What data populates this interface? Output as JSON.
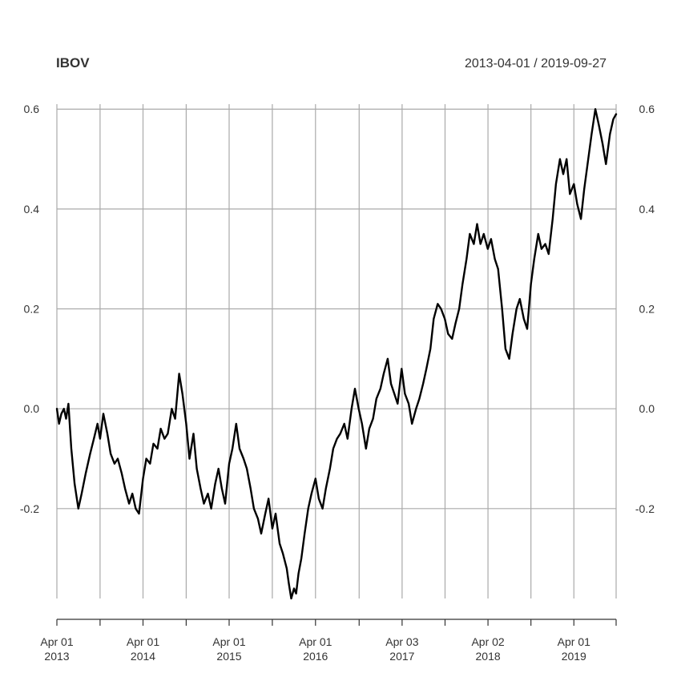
{
  "chart_data": {
    "type": "line",
    "title": "IBOV",
    "date_range": "2013-04-01 / 2019-09-27",
    "xlabel": "",
    "ylabel": "",
    "x_range": [
      "2013-04-01",
      "2019-09-27"
    ],
    "ylim": [
      -0.38,
      0.61
    ],
    "y_ticks": [
      "0.6",
      "0.4",
      "0.2",
      "0.0",
      "-0.2"
    ],
    "y_tick_values": [
      0.6,
      0.4,
      0.2,
      0.0,
      -0.2
    ],
    "grid": true,
    "x_ticks": [
      {
        "date": "2013-04-01",
        "line1": "Apr 01",
        "line2": "2013",
        "labeled": true
      },
      {
        "date": "2013-10-01",
        "line1": "",
        "line2": "",
        "labeled": false
      },
      {
        "date": "2014-04-01",
        "line1": "Apr 01",
        "line2": "2014",
        "labeled": true
      },
      {
        "date": "2014-10-01",
        "line1": "",
        "line2": "",
        "labeled": false
      },
      {
        "date": "2015-04-01",
        "line1": "Apr 01",
        "line2": "2015",
        "labeled": true
      },
      {
        "date": "2015-10-01",
        "line1": "",
        "line2": "",
        "labeled": false
      },
      {
        "date": "2016-04-01",
        "line1": "Apr 01",
        "line2": "2016",
        "labeled": true
      },
      {
        "date": "2016-10-03",
        "line1": "",
        "line2": "",
        "labeled": false
      },
      {
        "date": "2017-04-03",
        "line1": "Apr 03",
        "line2": "2017",
        "labeled": true
      },
      {
        "date": "2017-10-02",
        "line1": "",
        "line2": "",
        "labeled": false
      },
      {
        "date": "2018-04-02",
        "line1": "Apr 02",
        "line2": "2018",
        "labeled": true
      },
      {
        "date": "2018-10-01",
        "line1": "",
        "line2": "",
        "labeled": false
      },
      {
        "date": "2019-04-01",
        "line1": "Apr 01",
        "line2": "2019",
        "labeled": true
      },
      {
        "date": "2019-09-27",
        "line1": "",
        "line2": "",
        "labeled": false
      }
    ],
    "series": [
      {
        "line_color": "#000000",
        "points": [
          [
            "2013-04-01",
            0.0
          ],
          [
            "2013-04-10",
            -0.03
          ],
          [
            "2013-04-20",
            -0.01
          ],
          [
            "2013-05-01",
            0.0
          ],
          [
            "2013-05-10",
            -0.02
          ],
          [
            "2013-05-20",
            0.01
          ],
          [
            "2013-06-01",
            -0.08
          ],
          [
            "2013-06-15",
            -0.15
          ],
          [
            "2013-07-01",
            -0.2
          ],
          [
            "2013-07-15",
            -0.17
          ],
          [
            "2013-08-01",
            -0.13
          ],
          [
            "2013-08-20",
            -0.09
          ],
          [
            "2013-09-05",
            -0.06
          ],
          [
            "2013-09-20",
            -0.03
          ],
          [
            "2013-10-01",
            -0.06
          ],
          [
            "2013-10-15",
            -0.01
          ],
          [
            "2013-11-01",
            -0.05
          ],
          [
            "2013-11-15",
            -0.09
          ],
          [
            "2013-12-01",
            -0.11
          ],
          [
            "2013-12-15",
            -0.1
          ],
          [
            "2014-01-01",
            -0.13
          ],
          [
            "2014-01-15",
            -0.16
          ],
          [
            "2014-02-01",
            -0.19
          ],
          [
            "2014-02-15",
            -0.17
          ],
          [
            "2014-03-01",
            -0.2
          ],
          [
            "2014-03-15",
            -0.21
          ],
          [
            "2014-04-01",
            -0.14
          ],
          [
            "2014-04-15",
            -0.1
          ],
          [
            "2014-05-01",
            -0.11
          ],
          [
            "2014-05-15",
            -0.07
          ],
          [
            "2014-06-01",
            -0.08
          ],
          [
            "2014-06-15",
            -0.04
          ],
          [
            "2014-07-01",
            -0.06
          ],
          [
            "2014-07-15",
            -0.05
          ],
          [
            "2014-08-01",
            0.0
          ],
          [
            "2014-08-15",
            -0.02
          ],
          [
            "2014-09-01",
            0.07
          ],
          [
            "2014-09-15",
            0.03
          ],
          [
            "2014-10-01",
            -0.03
          ],
          [
            "2014-10-15",
            -0.1
          ],
          [
            "2014-11-01",
            -0.05
          ],
          [
            "2014-11-15",
            -0.12
          ],
          [
            "2014-12-01",
            -0.16
          ],
          [
            "2014-12-15",
            -0.19
          ],
          [
            "2015-01-01",
            -0.17
          ],
          [
            "2015-01-15",
            -0.2
          ],
          [
            "2015-02-01",
            -0.15
          ],
          [
            "2015-02-15",
            -0.12
          ],
          [
            "2015-03-01",
            -0.16
          ],
          [
            "2015-03-15",
            -0.19
          ],
          [
            "2015-04-01",
            -0.11
          ],
          [
            "2015-04-15",
            -0.08
          ],
          [
            "2015-05-01",
            -0.03
          ],
          [
            "2015-05-15",
            -0.08
          ],
          [
            "2015-06-01",
            -0.1
          ],
          [
            "2015-06-15",
            -0.12
          ],
          [
            "2015-07-01",
            -0.16
          ],
          [
            "2015-07-15",
            -0.2
          ],
          [
            "2015-08-01",
            -0.22
          ],
          [
            "2015-08-15",
            -0.25
          ],
          [
            "2015-09-01",
            -0.21
          ],
          [
            "2015-09-15",
            -0.18
          ],
          [
            "2015-10-01",
            -0.24
          ],
          [
            "2015-10-15",
            -0.21
          ],
          [
            "2015-11-01",
            -0.27
          ],
          [
            "2015-11-15",
            -0.29
          ],
          [
            "2015-12-01",
            -0.32
          ],
          [
            "2015-12-10",
            -0.35
          ],
          [
            "2015-12-20",
            -0.38
          ],
          [
            "2016-01-01",
            -0.36
          ],
          [
            "2016-01-10",
            -0.37
          ],
          [
            "2016-01-20",
            -0.33
          ],
          [
            "2016-02-01",
            -0.3
          ],
          [
            "2016-02-15",
            -0.25
          ],
          [
            "2016-03-01",
            -0.2
          ],
          [
            "2016-03-15",
            -0.17
          ],
          [
            "2016-04-01",
            -0.14
          ],
          [
            "2016-04-15",
            -0.18
          ],
          [
            "2016-05-01",
            -0.2
          ],
          [
            "2016-05-15",
            -0.16
          ],
          [
            "2016-06-01",
            -0.12
          ],
          [
            "2016-06-15",
            -0.08
          ],
          [
            "2016-07-01",
            -0.06
          ],
          [
            "2016-07-15",
            -0.05
          ],
          [
            "2016-08-01",
            -0.03
          ],
          [
            "2016-08-15",
            -0.06
          ],
          [
            "2016-09-01",
            0.0
          ],
          [
            "2016-09-15",
            0.04
          ],
          [
            "2016-10-01",
            0.0
          ],
          [
            "2016-10-15",
            -0.03
          ],
          [
            "2016-11-01",
            -0.08
          ],
          [
            "2016-11-15",
            -0.04
          ],
          [
            "2016-12-01",
            -0.02
          ],
          [
            "2016-12-15",
            0.02
          ],
          [
            "2017-01-01",
            0.04
          ],
          [
            "2017-01-15",
            0.07
          ],
          [
            "2017-02-01",
            0.1
          ],
          [
            "2017-02-15",
            0.05
          ],
          [
            "2017-03-01",
            0.03
          ],
          [
            "2017-03-15",
            0.01
          ],
          [
            "2017-04-01",
            0.08
          ],
          [
            "2017-04-15",
            0.03
          ],
          [
            "2017-05-01",
            0.01
          ],
          [
            "2017-05-15",
            -0.03
          ],
          [
            "2017-06-01",
            0.0
          ],
          [
            "2017-06-15",
            0.02
          ],
          [
            "2017-07-01",
            0.05
          ],
          [
            "2017-07-15",
            0.08
          ],
          [
            "2017-08-01",
            0.12
          ],
          [
            "2017-08-15",
            0.18
          ],
          [
            "2017-09-01",
            0.21
          ],
          [
            "2017-09-15",
            0.2
          ],
          [
            "2017-10-01",
            0.18
          ],
          [
            "2017-10-15",
            0.15
          ],
          [
            "2017-11-01",
            0.14
          ],
          [
            "2017-11-15",
            0.17
          ],
          [
            "2017-12-01",
            0.2
          ],
          [
            "2017-12-15",
            0.25
          ],
          [
            "2018-01-01",
            0.3
          ],
          [
            "2018-01-15",
            0.35
          ],
          [
            "2018-02-01",
            0.33
          ],
          [
            "2018-02-15",
            0.37
          ],
          [
            "2018-03-01",
            0.33
          ],
          [
            "2018-03-15",
            0.35
          ],
          [
            "2018-04-01",
            0.32
          ],
          [
            "2018-04-15",
            0.34
          ],
          [
            "2018-05-01",
            0.3
          ],
          [
            "2018-05-15",
            0.28
          ],
          [
            "2018-06-01",
            0.2
          ],
          [
            "2018-06-15",
            0.12
          ],
          [
            "2018-07-01",
            0.1
          ],
          [
            "2018-07-15",
            0.15
          ],
          [
            "2018-08-01",
            0.2
          ],
          [
            "2018-08-15",
            0.22
          ],
          [
            "2018-09-01",
            0.18
          ],
          [
            "2018-09-15",
            0.16
          ],
          [
            "2018-10-01",
            0.25
          ],
          [
            "2018-10-15",
            0.3
          ],
          [
            "2018-11-01",
            0.35
          ],
          [
            "2018-11-15",
            0.32
          ],
          [
            "2018-12-01",
            0.33
          ],
          [
            "2018-12-15",
            0.31
          ],
          [
            "2019-01-01",
            0.38
          ],
          [
            "2019-01-15",
            0.45
          ],
          [
            "2019-02-01",
            0.5
          ],
          [
            "2019-02-15",
            0.47
          ],
          [
            "2019-03-01",
            0.5
          ],
          [
            "2019-03-15",
            0.43
          ],
          [
            "2019-04-01",
            0.45
          ],
          [
            "2019-04-15",
            0.41
          ],
          [
            "2019-05-01",
            0.38
          ],
          [
            "2019-05-15",
            0.44
          ],
          [
            "2019-06-01",
            0.5
          ],
          [
            "2019-06-15",
            0.55
          ],
          [
            "2019-07-01",
            0.6
          ],
          [
            "2019-07-15",
            0.57
          ],
          [
            "2019-08-01",
            0.53
          ],
          [
            "2019-08-15",
            0.49
          ],
          [
            "2019-09-01",
            0.55
          ],
          [
            "2019-09-15",
            0.58
          ],
          [
            "2019-09-27",
            0.59
          ]
        ]
      }
    ]
  },
  "colors": {
    "grid": "#aaaaaa",
    "line": "#000000",
    "axis": "#333333",
    "text": "#333333"
  }
}
